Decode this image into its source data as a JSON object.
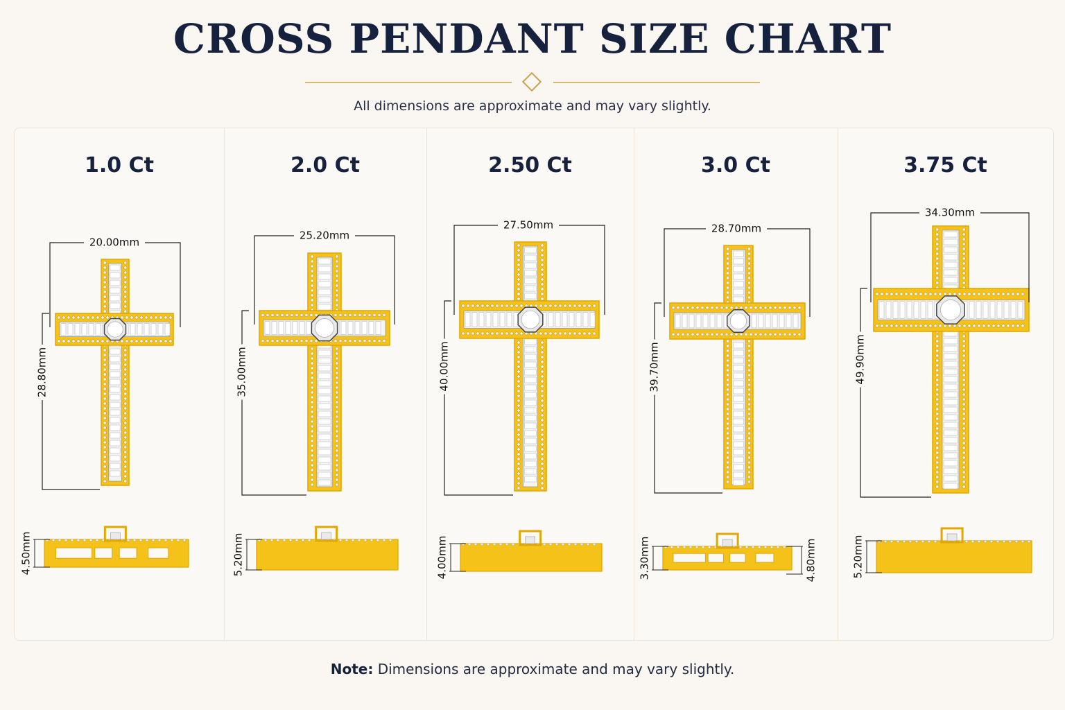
{
  "title": "CROSS PENDANT SIZE CHART",
  "subtitle": "All dimensions are approximate and may vary slightly.",
  "note": {
    "label": "Note:",
    "text": "Dimensions are approximate and may vary slightly."
  },
  "colors": {
    "gold": "#f5c21a",
    "gold_dark": "#e0a800",
    "navy": "#16213d",
    "accent": "#c9a24a"
  },
  "pendants": [
    {
      "carat": "1.0 Ct",
      "width": "20.00mm",
      "height": "28.80mm",
      "side_left": "4.50mm",
      "side_right": ""
    },
    {
      "carat": "2.0 Ct",
      "width": "25.20mm",
      "height": "35.00mm",
      "side_left": "5.20mm",
      "side_right": ""
    },
    {
      "carat": "2.50 Ct",
      "width": "27.50mm",
      "height": "40.00mm",
      "side_left": "4.00mm",
      "side_right": ""
    },
    {
      "carat": "3.0 Ct",
      "width": "28.70mm",
      "height": "39.70mm",
      "side_left": "3.30mm",
      "side_right": "4.80mm"
    },
    {
      "carat": "3.75 Ct",
      "width": "34.30mm",
      "height": "49.90mm",
      "side_left": "5.20mm",
      "side_right": ""
    }
  ]
}
